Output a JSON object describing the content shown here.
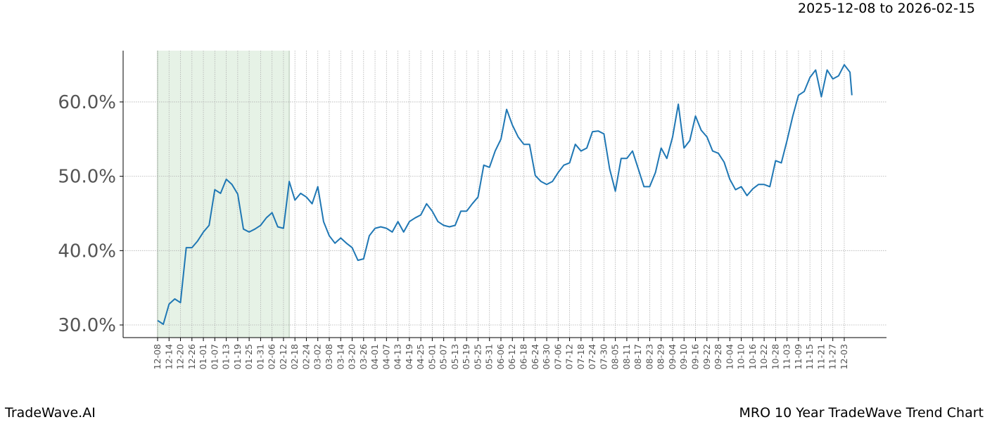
{
  "header": {
    "range_label": "2025-12-08 to 2026-02-15"
  },
  "footer": {
    "brand": "TradeWave.AI",
    "chart_name": "MRO 10 Year TradeWave Trend Chart"
  },
  "colors": {
    "line": "#1f77b4",
    "shade": "#d9ecd9",
    "grid": "#b0b0b0",
    "tick_label": "#555555"
  },
  "chart_data": {
    "type": "line",
    "title": "",
    "xlabel": "",
    "ylabel": "",
    "ylim": [
      28.3,
      66.9
    ],
    "y_ticks": [
      30,
      40,
      50,
      60
    ],
    "y_tick_labels": [
      "30.0%",
      "40.0%",
      "50.0%",
      "60.0%"
    ],
    "grid": true,
    "highlight_range": [
      "12-08",
      "02-15"
    ],
    "x_tick_labels": [
      "12-08",
      "12-14",
      "12-20",
      "12-26",
      "01-01",
      "01-07",
      "01-13",
      "01-19",
      "01-25",
      "01-31",
      "02-06",
      "02-12",
      "02-18",
      "02-24",
      "03-02",
      "03-08",
      "03-14",
      "03-20",
      "03-26",
      "04-01",
      "04-07",
      "04-13",
      "04-19",
      "04-25",
      "05-01",
      "05-07",
      "05-13",
      "05-19",
      "05-25",
      "05-31",
      "06-06",
      "06-12",
      "06-18",
      "06-24",
      "06-30",
      "07-06",
      "07-12",
      "07-18",
      "07-24",
      "07-30",
      "08-05",
      "08-11",
      "08-17",
      "08-23",
      "08-29",
      "09-04",
      "09-10",
      "09-16",
      "09-22",
      "09-28",
      "10-04",
      "10-10",
      "10-16",
      "10-22",
      "10-28",
      "11-03",
      "11-09",
      "11-15",
      "11-21",
      "11-27",
      "12-03"
    ],
    "x": [
      "12-08",
      "12-11",
      "12-14",
      "12-17",
      "12-20",
      "12-23",
      "12-26",
      "12-29",
      "01-01",
      "01-04",
      "01-07",
      "01-10",
      "01-13",
      "01-16",
      "01-19",
      "01-22",
      "01-25",
      "01-28",
      "01-31",
      "02-03",
      "02-06",
      "02-09",
      "02-12",
      "02-15",
      "02-18",
      "02-21",
      "02-24",
      "02-27",
      "03-02",
      "03-05",
      "03-08",
      "03-11",
      "03-14",
      "03-17",
      "03-20",
      "03-23",
      "03-26",
      "03-29",
      "04-01",
      "04-04",
      "04-07",
      "04-10",
      "04-13",
      "04-16",
      "04-19",
      "04-22",
      "04-25",
      "04-28",
      "05-01",
      "05-04",
      "05-07",
      "05-10",
      "05-13",
      "05-16",
      "05-19",
      "05-22",
      "05-25",
      "05-28",
      "05-31",
      "06-03",
      "06-06",
      "06-09",
      "06-12",
      "06-15",
      "06-18",
      "06-21",
      "06-24",
      "06-27",
      "06-30",
      "07-03",
      "07-06",
      "07-09",
      "07-12",
      "07-15",
      "07-18",
      "07-21",
      "07-24",
      "07-27",
      "07-30",
      "08-02",
      "08-05",
      "08-08",
      "08-11",
      "08-14",
      "08-17",
      "08-20",
      "08-23",
      "08-26",
      "08-29",
      "09-01",
      "09-04",
      "09-07",
      "09-10",
      "09-13",
      "09-16",
      "09-19",
      "09-22",
      "09-25",
      "09-28",
      "10-01",
      "10-04",
      "10-07",
      "10-10",
      "10-13",
      "10-16",
      "10-19",
      "10-22",
      "10-25",
      "10-28",
      "10-31",
      "11-03",
      "11-06",
      "11-09",
      "11-12",
      "11-15",
      "11-18",
      "11-21",
      "11-24",
      "11-27",
      "11-30",
      "12-03",
      "12-06",
      "12-07"
    ],
    "series": [
      {
        "values": [
          30.6,
          30.1,
          32.8,
          33.5,
          33.0,
          40.4,
          40.4,
          41.3,
          42.5,
          43.4,
          48.2,
          47.7,
          49.6,
          48.9,
          47.6,
          42.9,
          42.5,
          42.9,
          43.4,
          44.4,
          45.1,
          43.2,
          43.0,
          49.3,
          46.8,
          47.7,
          47.2,
          46.3,
          48.6,
          43.9,
          42.0,
          41.0,
          41.7,
          41.0,
          40.4,
          38.7,
          38.9,
          42.0,
          43.0,
          43.2,
          43.0,
          42.5,
          43.9,
          42.5,
          43.9,
          44.4,
          44.8,
          46.3,
          45.3,
          43.9,
          43.4,
          43.2,
          43.4,
          45.3,
          45.3,
          46.3,
          47.2,
          51.5,
          51.2,
          53.4,
          55.0,
          59.0,
          56.9,
          55.3,
          54.3,
          54.3,
          50.1,
          49.3,
          48.9,
          49.3,
          50.5,
          51.5,
          51.8,
          54.3,
          53.4,
          53.8,
          56.0,
          56.1,
          55.7,
          51.0,
          48.0,
          52.4,
          52.4,
          53.4,
          51.0,
          48.6,
          48.6,
          50.5,
          53.8,
          52.4,
          55.3,
          59.7,
          53.8,
          54.8,
          58.1,
          56.2,
          55.3,
          53.4,
          53.1,
          51.9,
          49.6,
          48.2,
          48.6,
          47.4,
          48.3,
          48.9,
          48.9,
          48.6,
          52.1,
          51.8,
          54.8,
          58.1,
          60.9,
          61.4,
          63.3,
          64.3,
          60.7,
          64.3,
          63.1,
          63.5,
          65.0,
          64.0,
          60.9
        ]
      }
    ]
  }
}
